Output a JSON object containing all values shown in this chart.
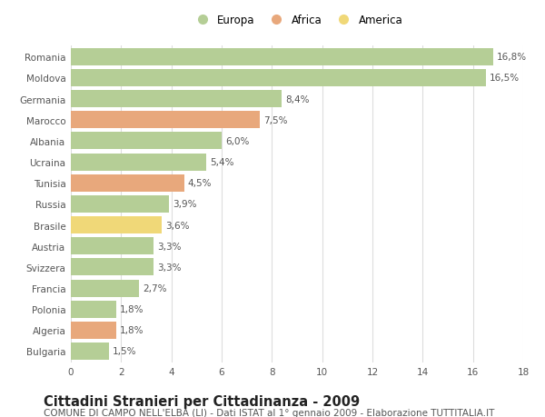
{
  "categories": [
    "Romania",
    "Moldova",
    "Germania",
    "Marocco",
    "Albania",
    "Ucraina",
    "Tunisia",
    "Russia",
    "Brasile",
    "Austria",
    "Svizzera",
    "Francia",
    "Polonia",
    "Algeria",
    "Bulgaria"
  ],
  "values": [
    16.8,
    16.5,
    8.4,
    7.5,
    6.0,
    5.4,
    4.5,
    3.9,
    3.6,
    3.3,
    3.3,
    2.7,
    1.8,
    1.8,
    1.5
  ],
  "labels": [
    "16,8%",
    "16,5%",
    "8,4%",
    "7,5%",
    "6,0%",
    "5,4%",
    "4,5%",
    "3,9%",
    "3,6%",
    "3,3%",
    "3,3%",
    "2,7%",
    "1,8%",
    "1,8%",
    "1,5%"
  ],
  "colors": [
    "#b5ce96",
    "#b5ce96",
    "#b5ce96",
    "#e8a87c",
    "#b5ce96",
    "#b5ce96",
    "#e8a87c",
    "#b5ce96",
    "#f0d878",
    "#b5ce96",
    "#b5ce96",
    "#b5ce96",
    "#b5ce96",
    "#e8a87c",
    "#b5ce96"
  ],
  "legend": [
    {
      "label": "Europa",
      "color": "#b5ce96"
    },
    {
      "label": "Africa",
      "color": "#e8a87c"
    },
    {
      "label": "America",
      "color": "#f0d878"
    }
  ],
  "xlim": [
    0,
    18
  ],
  "xticks": [
    0,
    2,
    4,
    6,
    8,
    10,
    12,
    14,
    16,
    18
  ],
  "title": "Cittadini Stranieri per Cittadinanza - 2009",
  "subtitle": "COMUNE DI CAMPO NELL'ELBA (LI) - Dati ISTAT al 1° gennaio 2009 - Elaborazione TUTTITALIA.IT",
  "bg_color": "#ffffff",
  "grid_color": "#dddddd",
  "bar_height": 0.82,
  "title_fontsize": 10.5,
  "subtitle_fontsize": 7.5,
  "label_fontsize": 7.5,
  "tick_fontsize": 7.5,
  "legend_fontsize": 8.5
}
